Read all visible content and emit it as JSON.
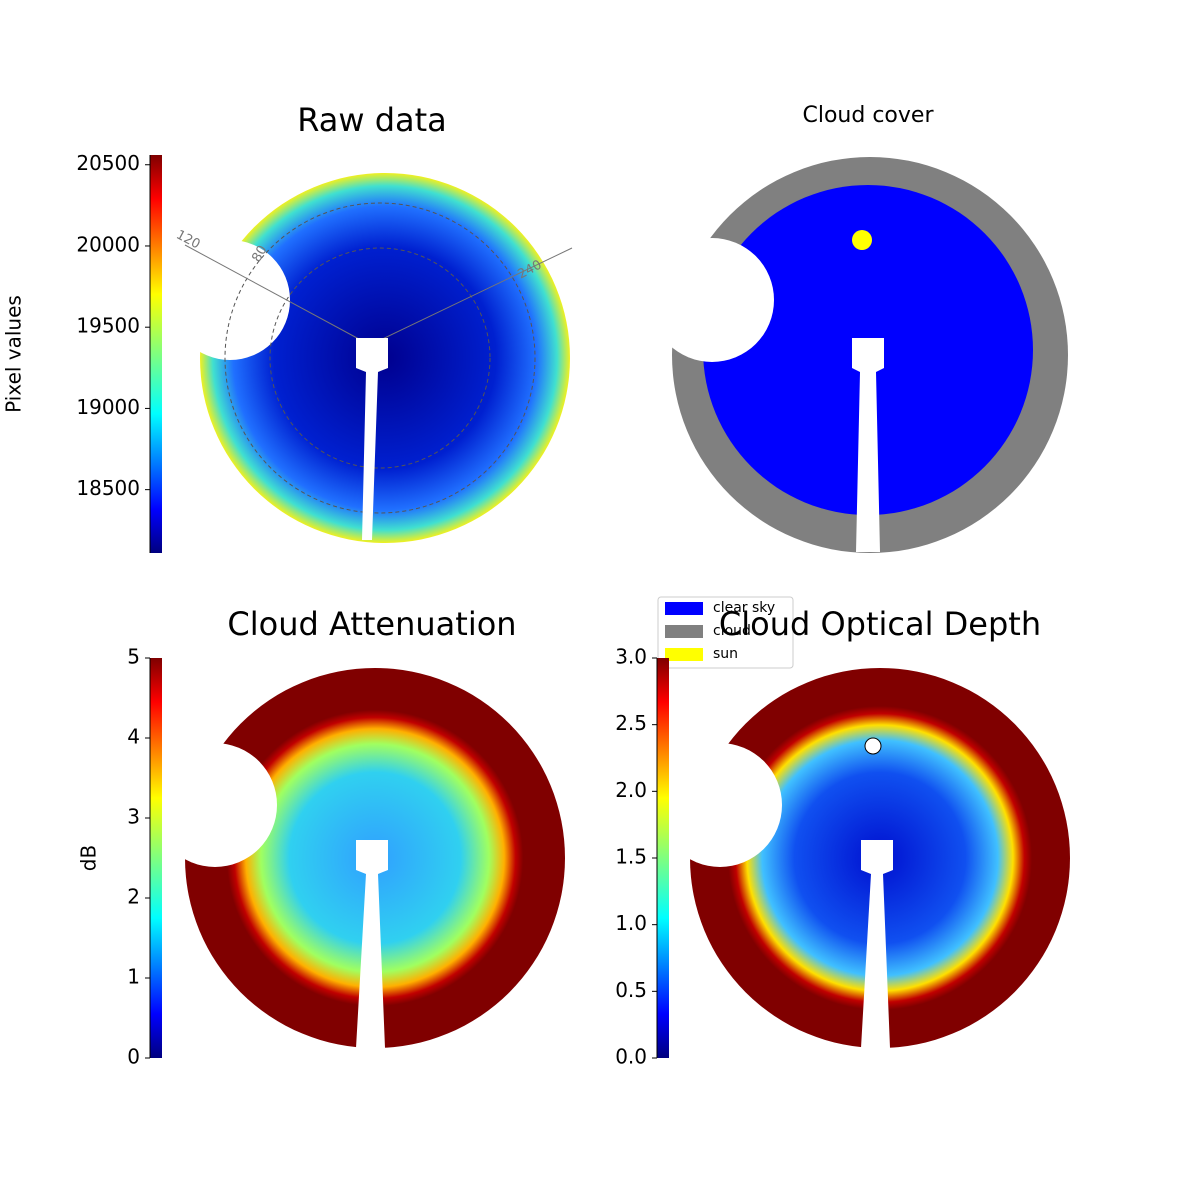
{
  "chart_data": [
    {
      "type": "image",
      "title": "Raw data",
      "colorbar": {
        "label": "Pixel values",
        "lim": [
          18110,
          20560
        ],
        "ticks": [
          18500,
          19000,
          19500,
          20000,
          20500
        ]
      },
      "annotations": [
        "120",
        "80",
        "240"
      ]
    },
    {
      "type": "image",
      "title": "Cloud cover",
      "legend": [
        {
          "name": "clear sky",
          "color": "#0000ff"
        },
        {
          "name": "cloud",
          "color": "#808080"
        },
        {
          "name": "sun",
          "color": "#ffff00"
        }
      ]
    },
    {
      "type": "image",
      "title": "Cloud Attenuation",
      "colorbar": {
        "label": "dB",
        "lim": [
          0,
          5
        ],
        "ticks": [
          0,
          1,
          2,
          3,
          4,
          5
        ]
      }
    },
    {
      "type": "image",
      "title": "Cloud Optical Depth",
      "colorbar": {
        "lim": [
          0,
          3
        ],
        "ticks": [
          {
            "value": 0,
            "label": "0.0"
          },
          {
            "value": 0.5,
            "label": "0.5"
          },
          {
            "value": 1,
            "label": "1.0"
          },
          {
            "value": 1.5,
            "label": "1.5"
          },
          {
            "value": 2,
            "label": "2.0"
          },
          {
            "value": 2.5,
            "label": "2.5"
          },
          {
            "value": 3,
            "label": "3.0"
          }
        ]
      }
    }
  ]
}
